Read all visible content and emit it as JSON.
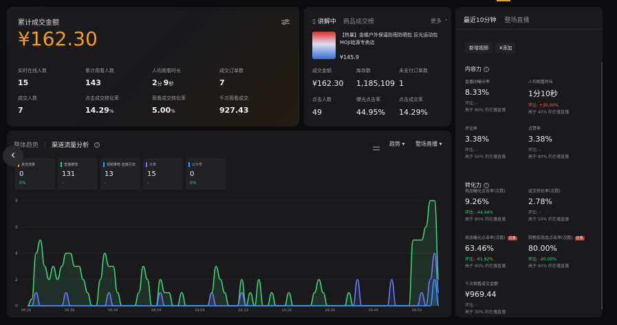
{
  "top_tab": {
    "accent": "#f0a020"
  },
  "summary": {
    "title": "累计成交金额",
    "amount": "¥162.30",
    "metrics": [
      {
        "label": "实时在线人数",
        "value": "15",
        "unit": ""
      },
      {
        "label": "累计观看人数",
        "value": "143",
        "unit": ""
      },
      {
        "label": "人均观看时长",
        "value": "2",
        "unit": "分",
        "value2": "9",
        "unit2": "秒"
      },
      {
        "label": "成交订单数",
        "value": "7",
        "unit": ""
      },
      {
        "label": "成交人数",
        "value": "7",
        "unit": ""
      },
      {
        "label": "点击成交转化率",
        "value": "14.29",
        "unit": "%"
      },
      {
        "label": "观看成交转化率",
        "value": "5.00",
        "unit": "%"
      },
      {
        "label": "千次观看成交",
        "value": "927.43",
        "unit": ""
      }
    ]
  },
  "product": {
    "tab_active": "讲解中",
    "tab_other": "商品成交榜",
    "more": "更多",
    "tag": "【热量】",
    "name": "金蝶户外保温防雨防晒包 反光运动包",
    "shop": "MOJI始源专卖店",
    "price": "¥145.9",
    "metrics": [
      {
        "label": "成交金额",
        "value": "¥162.30"
      },
      {
        "label": "库存数",
        "value": "1,185,109"
      },
      {
        "label": "未支付订单数",
        "value": "1"
      },
      {
        "label": "点击人数",
        "value": "49"
      },
      {
        "label": "曝光点击率",
        "value": "44.95%"
      },
      {
        "label": "点击成交率",
        "value": "14.29%"
      }
    ]
  },
  "traffic": {
    "tab_overall": "整体趋势",
    "tab_channel": "渠道流量分析",
    "trend_label": "趋势",
    "filter_label": "整场直播",
    "cards": [
      {
        "name": "其他流量",
        "value": "0",
        "delta": "0%",
        "color": "#f0a020"
      },
      {
        "name": "直播推荐",
        "value": "131",
        "delta": "-",
        "color": "#3fd27a"
      },
      {
        "name": "视频推荐-直播引流",
        "value": "13",
        "delta": "-",
        "color": "#3a9bff"
      },
      {
        "name": "分享",
        "value": "15",
        "delta": "-",
        "color": "#6b7cff"
      },
      {
        "name": "公众号",
        "value": "0",
        "delta": "0%",
        "color": "#39a0ff"
      }
    ]
  },
  "chart_data": {
    "type": "area",
    "ylim": [
      0,
      8
    ],
    "yticks": [
      "0",
      "2",
      "4",
      "6",
      "8"
    ],
    "xticks": [
      "08:29",
      "08:39",
      "08:49",
      "08:59",
      "09:09",
      "09:19",
      "09:29",
      "09:39",
      "09:49",
      "09:59"
    ],
    "series": [
      {
        "color": "#3fd27a",
        "values": [
          0,
          0.5,
          4,
          5,
          3,
          2,
          3,
          2,
          3,
          4,
          4,
          3,
          3,
          2,
          1,
          0,
          0,
          2,
          4,
          3,
          3,
          1,
          0,
          0,
          0,
          0,
          1,
          3,
          2,
          0,
          0,
          2,
          1,
          1,
          0,
          0,
          1,
          0,
          0,
          0,
          0,
          0,
          0,
          1,
          3,
          2,
          1,
          0,
          0,
          0,
          2,
          0,
          1,
          0,
          2,
          0,
          0,
          1,
          0,
          0,
          0,
          1,
          0,
          0,
          0,
          0,
          0,
          1,
          2,
          1,
          0,
          0,
          0,
          0,
          0,
          1,
          0,
          0,
          0,
          0,
          0,
          0,
          0,
          0,
          0,
          0,
          0,
          0,
          0,
          0,
          5,
          5,
          5,
          6,
          8,
          8,
          2
        ]
      },
      {
        "color": "#6b7cff",
        "values": [
          0,
          0,
          1,
          0,
          0,
          0,
          0,
          0,
          0,
          1,
          0,
          0,
          0,
          0,
          0,
          0,
          0,
          0,
          0,
          1,
          0,
          0,
          0,
          0,
          0,
          0,
          0,
          0,
          0,
          0,
          0,
          1,
          0,
          0,
          0,
          0,
          0,
          0,
          0,
          0,
          0,
          0,
          0,
          1,
          0,
          0,
          0,
          0,
          0,
          0,
          1,
          0,
          0,
          0,
          0,
          0,
          0,
          0,
          0,
          0,
          0,
          0,
          0,
          0,
          0,
          0,
          0,
          0,
          0,
          0,
          0,
          0,
          0,
          0,
          0,
          0,
          0,
          2,
          0,
          0,
          0,
          0,
          0,
          0,
          0,
          2,
          0,
          0,
          0,
          0,
          0,
          0,
          1,
          0,
          2,
          4,
          1
        ]
      },
      {
        "color": "#3a9bff",
        "values": [
          0,
          0,
          0,
          0,
          0,
          0,
          0,
          0,
          0,
          0,
          0,
          0,
          0,
          0,
          0,
          0,
          0,
          0,
          0,
          0,
          0,
          0,
          0,
          0,
          0,
          0,
          0,
          0,
          0,
          0,
          0,
          0,
          0,
          0,
          0,
          0,
          0,
          0,
          0,
          0,
          0,
          0,
          0,
          0,
          0,
          0,
          0,
          0,
          0,
          0,
          0,
          0,
          0,
          0,
          0,
          0,
          0,
          0,
          0,
          0,
          0,
          0,
          0,
          0,
          0,
          0,
          0,
          0,
          0,
          0,
          0,
          0,
          0,
          0,
          0,
          0,
          0,
          0,
          0,
          0,
          0,
          0,
          0,
          0,
          0,
          0,
          0,
          0,
          0,
          0,
          0,
          0,
          0,
          0,
          0,
          2,
          0
        ]
      }
    ]
  },
  "right": {
    "tab_active": "最近10分钟",
    "tab_other": "整场直播",
    "btn_new": "新增视频",
    "btn_add": "¥添加",
    "section1": "内容力",
    "section2": "转化力",
    "cells": [
      {
        "label": "直播间曝光率",
        "value": "8.33%",
        "cmp": "环比: -",
        "rank": "高于 80% 的在播直播"
      },
      {
        "label": "人均观看时长",
        "value": "1分10秒",
        "cmp": "环比: +30.00%",
        "rank": "高于 40% 的在播直播"
      },
      {
        "label": "评论率",
        "value": "3.38%",
        "cmp": "环比: -",
        "rank": "高于 50% 的在播直播"
      },
      {
        "label": "点赞率",
        "value": "3.38%",
        "cmp": "环比: -",
        "rank": "高于 80% 的在播直播"
      },
      {
        "label": "商品曝光点击率(次数)",
        "value": "9.26%",
        "cmp": "环比: -44.44%",
        "rank": "高于 80% 的在播直播"
      },
      {
        "label": "成交转化率(次数)",
        "value": "2.78%",
        "cmp": "环比: -",
        "rank": "高于 50% 的在播直播"
      },
      {
        "label": "商品曝光点击率(次数)",
        "value": "63.46%",
        "cmp": "环比: -61.92%",
        "rank": "高于 90% 的在播直播",
        "badge": "优秀"
      },
      {
        "label": "购物车商品点击率(次数)",
        "value": "80.00%",
        "cmp": "环比: -20.00%",
        "rank": "高于 90% 的在播直播",
        "badge": "优秀"
      },
      {
        "label": "千次观看成交金额",
        "value": "¥969.44",
        "cmp": "环比: -",
        "rank": "高于 30% 的在播直播"
      }
    ]
  }
}
